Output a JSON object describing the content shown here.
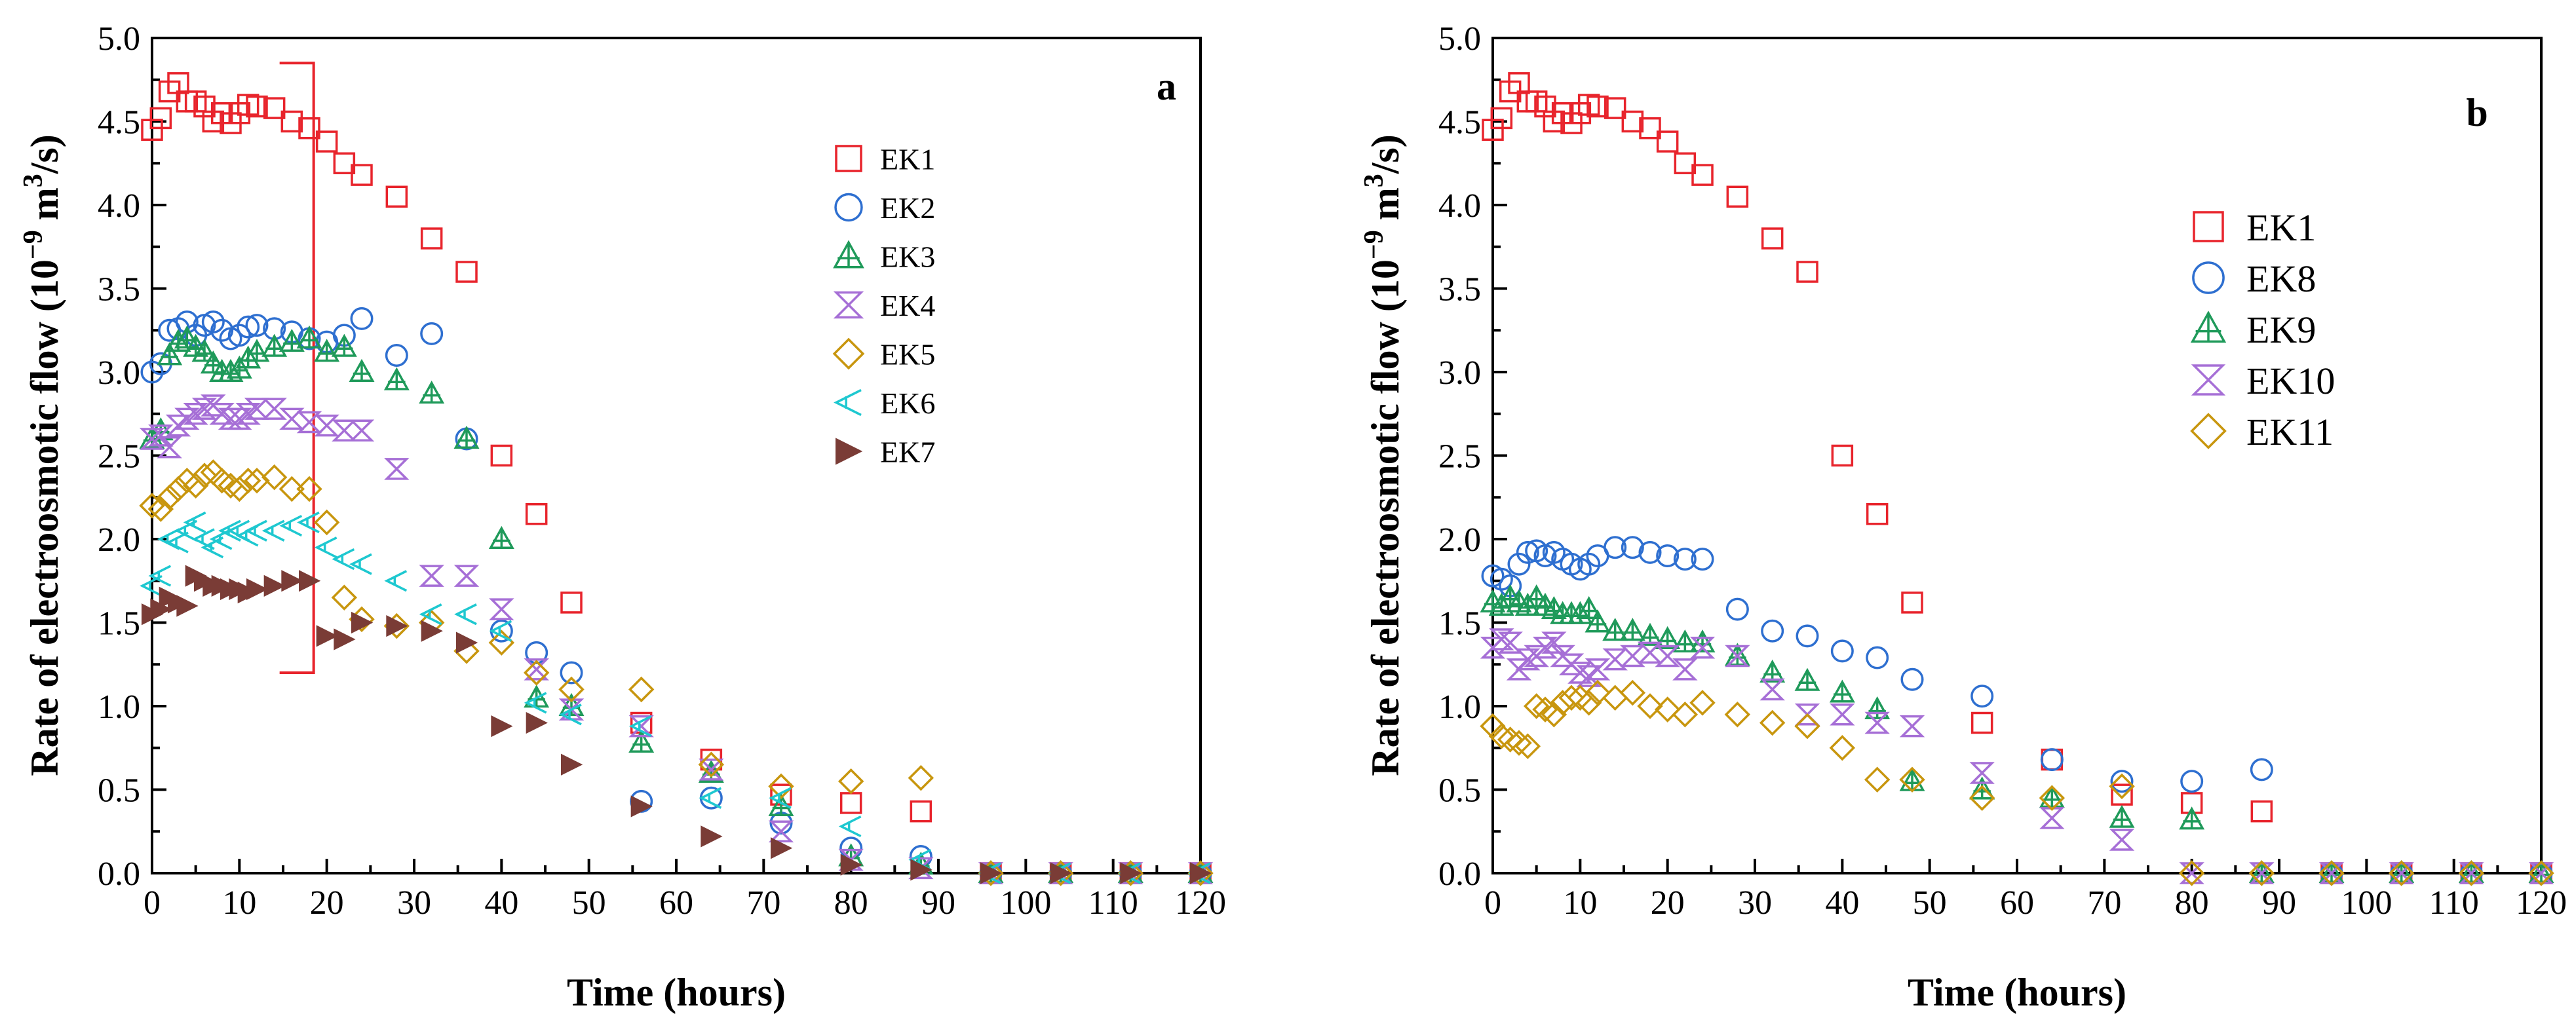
{
  "chart_data": [
    {
      "type": "scatter",
      "panel_label": "a",
      "xlabel": "Time (hours)",
      "ylabel_main": "Rate of electroosmotic flow (10",
      "ylabel_exp": "−9",
      "ylabel_mid": " m",
      "ylabel_exp2": "3",
      "ylabel_end": "/s)",
      "xlim": [
        0,
        120
      ],
      "ylim": [
        0,
        5
      ],
      "xticks": [
        "0",
        "10",
        "20",
        "30",
        "40",
        "50",
        "60",
        "70",
        "80",
        "90",
        "100",
        "110",
        "120"
      ],
      "yticks": [
        "0.0",
        "0.5",
        "1.0",
        "1.5",
        "2.0",
        "2.5",
        "3.0",
        "3.5",
        "4.0",
        "4.5",
        "5.0"
      ],
      "legend_position": "top-right",
      "bracket": {
        "x_start": 0,
        "x_end": 18.5,
        "y_low": 1.2,
        "y_high": 4.85,
        "color": "#e8242c"
      },
      "series": [
        {
          "name": "EK1",
          "marker": "square",
          "color": "#e8242c",
          "x": [
            0,
            1,
            2,
            3,
            4,
            5,
            6,
            7,
            8,
            9,
            10,
            11,
            12,
            14,
            16,
            18,
            20,
            22,
            24,
            28,
            32,
            36,
            40,
            44,
            48,
            56,
            64,
            72,
            80,
            88,
            96,
            104,
            112,
            120
          ],
          "y": [
            4.45,
            4.52,
            4.68,
            4.73,
            4.62,
            4.62,
            4.59,
            4.5,
            4.55,
            4.49,
            4.55,
            4.6,
            4.59,
            4.58,
            4.5,
            4.46,
            4.38,
            4.25,
            4.18,
            4.05,
            3.8,
            3.6,
            2.5,
            2.15,
            1.62,
            0.9,
            0.68,
            0.47,
            0.42,
            0.37,
            0.0,
            0.0,
            0.0,
            0.0
          ]
        },
        {
          "name": "EK2",
          "marker": "circle",
          "color": "#2e6fd0",
          "x": [
            0,
            1,
            2,
            3,
            4,
            5,
            6,
            7,
            8,
            9,
            10,
            11,
            12,
            14,
            16,
            18,
            20,
            22,
            24,
            28,
            32,
            36,
            40,
            44,
            48,
            56,
            64,
            72,
            80,
            88,
            96,
            104,
            112,
            120
          ],
          "y": [
            3.0,
            3.05,
            3.25,
            3.26,
            3.3,
            3.22,
            3.28,
            3.3,
            3.25,
            3.2,
            3.22,
            3.27,
            3.28,
            3.26,
            3.24,
            3.2,
            3.18,
            3.22,
            3.32,
            3.1,
            3.23,
            2.6,
            1.45,
            1.32,
            1.2,
            0.43,
            0.45,
            0.3,
            0.15,
            0.1,
            0.0,
            0.0,
            0.0,
            0.0
          ]
        },
        {
          "name": "EK3",
          "marker": "triangle",
          "color": "#1f9a5a",
          "x": [
            0,
            1,
            2,
            3,
            4,
            5,
            6,
            7,
            8,
            9,
            10,
            11,
            12,
            14,
            16,
            18,
            20,
            22,
            24,
            28,
            32,
            36,
            40,
            44,
            48,
            56,
            64,
            72,
            80,
            88,
            96,
            104,
            112,
            120
          ],
          "y": [
            2.6,
            2.65,
            3.1,
            3.18,
            3.2,
            3.15,
            3.12,
            3.05,
            3.0,
            3.0,
            3.02,
            3.08,
            3.12,
            3.15,
            3.18,
            3.2,
            3.12,
            3.15,
            3.0,
            2.95,
            2.87,
            2.6,
            2.0,
            1.05,
            1.0,
            0.78,
            0.6,
            0.4,
            0.1,
            0.05,
            0.0,
            0.0,
            0.0,
            0.0
          ]
        },
        {
          "name": "EK4",
          "marker": "bowtie",
          "color": "#a66fd6",
          "x": [
            0,
            1,
            2,
            3,
            4,
            5,
            6,
            7,
            8,
            9,
            10,
            11,
            12,
            14,
            16,
            18,
            20,
            22,
            24,
            28,
            32,
            36,
            40,
            44,
            48,
            56,
            64,
            72,
            80,
            88,
            96,
            104,
            112,
            120
          ],
          "y": [
            2.6,
            2.62,
            2.55,
            2.68,
            2.72,
            2.75,
            2.78,
            2.8,
            2.75,
            2.72,
            2.72,
            2.75,
            2.78,
            2.78,
            2.72,
            2.7,
            2.68,
            2.65,
            2.65,
            2.42,
            1.78,
            1.78,
            1.58,
            1.22,
            0.98,
            0.88,
            0.62,
            0.25,
            0.08,
            0.03,
            0.0,
            0.0,
            0.0,
            0.0
          ]
        },
        {
          "name": "EK5",
          "marker": "diamond",
          "color": "#c8960e",
          "x": [
            0,
            1,
            2,
            3,
            4,
            5,
            6,
            7,
            8,
            9,
            10,
            11,
            12,
            14,
            16,
            18,
            20,
            22,
            24,
            28,
            32,
            36,
            40,
            44,
            48,
            56,
            64,
            72,
            80,
            88,
            96,
            104,
            112,
            120
          ],
          "y": [
            2.2,
            2.18,
            2.25,
            2.3,
            2.35,
            2.32,
            2.38,
            2.4,
            2.35,
            2.32,
            2.3,
            2.35,
            2.35,
            2.37,
            2.3,
            2.3,
            2.1,
            1.65,
            1.52,
            1.48,
            1.5,
            1.33,
            1.38,
            1.2,
            1.1,
            1.1,
            0.65,
            0.52,
            0.55,
            0.57,
            0.0,
            0.0,
            0.0,
            0.0
          ]
        },
        {
          "name": "EK6",
          "marker": "triangle-left",
          "color": "#1ec8d0",
          "x": [
            0,
            1,
            2,
            3,
            4,
            5,
            6,
            7,
            8,
            9,
            10,
            11,
            12,
            14,
            16,
            18,
            20,
            22,
            24,
            28,
            32,
            36,
            40,
            44,
            48,
            56,
            64,
            72,
            80,
            88,
            96,
            104,
            112,
            120
          ],
          "y": [
            1.72,
            1.78,
            2.0,
            1.98,
            2.05,
            2.1,
            2.0,
            1.95,
            2.0,
            2.05,
            2.05,
            2.02,
            2.05,
            2.05,
            2.08,
            2.1,
            1.95,
            1.88,
            1.85,
            1.75,
            1.55,
            1.55,
            1.45,
            1.02,
            0.95,
            0.88,
            0.45,
            0.45,
            0.28,
            0.08,
            0.0,
            0.0,
            0.0,
            0.0
          ]
        },
        {
          "name": "EK7",
          "marker": "triangle-right",
          "color": "#7a3c36",
          "x": [
            0,
            1,
            2,
            3,
            4,
            5,
            6,
            7,
            8,
            9,
            10,
            11,
            12,
            14,
            16,
            18,
            20,
            22,
            24,
            28,
            32,
            36,
            40,
            44,
            48,
            56,
            64,
            72,
            80,
            88,
            96,
            104,
            112,
            120
          ],
          "y": [
            1.55,
            1.58,
            1.65,
            1.62,
            1.6,
            1.78,
            1.75,
            1.72,
            1.72,
            1.7,
            1.7,
            1.68,
            1.7,
            1.72,
            1.75,
            1.75,
            1.42,
            1.4,
            1.5,
            1.48,
            1.45,
            1.38,
            0.88,
            0.9,
            0.65,
            0.4,
            0.22,
            0.15,
            0.05,
            0.02,
            0.0,
            0.0,
            0.0,
            0.0
          ]
        }
      ]
    },
    {
      "type": "scatter",
      "panel_label": "b",
      "xlabel": "Time (hours)",
      "ylabel_main": "Rate of electroosmotic flow (10",
      "ylabel_exp": "−9",
      "ylabel_mid": " m",
      "ylabel_exp2": "3",
      "ylabel_end": "/s)",
      "xlim": [
        0,
        120
      ],
      "ylim": [
        0,
        5
      ],
      "xticks": [
        "0",
        "10",
        "20",
        "30",
        "40",
        "50",
        "60",
        "70",
        "80",
        "90",
        "100",
        "110",
        "120"
      ],
      "yticks": [
        "0.0",
        "0.5",
        "1.0",
        "1.5",
        "2.0",
        "2.5",
        "3.0",
        "3.5",
        "4.0",
        "4.5",
        "5.0"
      ],
      "legend_position": "top-right",
      "series": [
        {
          "name": "EK1",
          "marker": "square",
          "color": "#e8242c",
          "x": [
            0,
            1,
            2,
            3,
            4,
            5,
            6,
            7,
            8,
            9,
            10,
            11,
            12,
            14,
            16,
            18,
            20,
            22,
            24,
            28,
            32,
            36,
            40,
            44,
            48,
            56,
            64,
            72,
            80,
            88,
            96,
            104,
            112,
            120
          ],
          "y": [
            4.45,
            4.52,
            4.68,
            4.73,
            4.62,
            4.62,
            4.59,
            4.5,
            4.55,
            4.49,
            4.55,
            4.6,
            4.59,
            4.58,
            4.5,
            4.46,
            4.38,
            4.25,
            4.18,
            4.05,
            3.8,
            3.6,
            2.5,
            2.15,
            1.62,
            0.9,
            0.68,
            0.47,
            0.42,
            0.37,
            0.0,
            0.0,
            0.0,
            0.0
          ]
        },
        {
          "name": "EK8",
          "marker": "circle",
          "color": "#2e6fd0",
          "x": [
            0,
            1,
            2,
            3,
            4,
            5,
            6,
            7,
            8,
            9,
            10,
            11,
            12,
            14,
            16,
            18,
            20,
            22,
            24,
            28,
            32,
            36,
            40,
            44,
            48,
            56,
            64,
            72,
            80,
            88,
            96,
            104,
            112,
            120
          ],
          "y": [
            1.78,
            1.76,
            1.72,
            1.85,
            1.92,
            1.93,
            1.9,
            1.92,
            1.88,
            1.85,
            1.82,
            1.85,
            1.9,
            1.95,
            1.95,
            1.92,
            1.9,
            1.88,
            1.88,
            1.58,
            1.45,
            1.42,
            1.33,
            1.29,
            1.16,
            1.06,
            0.68,
            0.55,
            0.55,
            0.62,
            0.0,
            0.0,
            0.0,
            0.0
          ]
        },
        {
          "name": "EK9",
          "marker": "triangle",
          "color": "#1f9a5a",
          "x": [
            0,
            1,
            2,
            3,
            4,
            5,
            6,
            7,
            8,
            9,
            10,
            11,
            12,
            14,
            16,
            18,
            20,
            22,
            24,
            28,
            32,
            36,
            40,
            44,
            48,
            56,
            64,
            72,
            80,
            88,
            96,
            104,
            112,
            120
          ],
          "y": [
            1.62,
            1.6,
            1.65,
            1.62,
            1.6,
            1.65,
            1.6,
            1.58,
            1.55,
            1.55,
            1.55,
            1.58,
            1.5,
            1.45,
            1.45,
            1.42,
            1.4,
            1.38,
            1.38,
            1.3,
            1.2,
            1.15,
            1.08,
            0.98,
            0.55,
            0.5,
            0.45,
            0.33,
            0.32,
            0.0,
            0.0,
            0.0,
            0.0,
            0.0
          ]
        },
        {
          "name": "EK10",
          "marker": "bowtie",
          "color": "#a66fd6",
          "x": [
            0,
            1,
            2,
            3,
            4,
            5,
            6,
            7,
            8,
            9,
            10,
            11,
            12,
            14,
            16,
            18,
            20,
            22,
            24,
            28,
            32,
            36,
            40,
            44,
            48,
            56,
            64,
            72,
            80,
            88,
            96,
            104,
            112,
            120
          ],
          "y": [
            1.35,
            1.4,
            1.38,
            1.22,
            1.28,
            1.3,
            1.35,
            1.38,
            1.3,
            1.25,
            1.2,
            1.18,
            1.22,
            1.28,
            1.3,
            1.32,
            1.3,
            1.22,
            1.35,
            1.3,
            1.1,
            0.95,
            0.95,
            0.9,
            0.88,
            0.6,
            0.33,
            0.2,
            0.0,
            0.0,
            0.0,
            0.0,
            0.0,
            0.0
          ]
        },
        {
          "name": "EK11",
          "marker": "diamond",
          "color": "#c8960e",
          "x": [
            0,
            1,
            2,
            3,
            4,
            5,
            6,
            7,
            8,
            9,
            10,
            11,
            12,
            14,
            16,
            18,
            20,
            22,
            24,
            28,
            32,
            36,
            40,
            44,
            48,
            56,
            64,
            72,
            80,
            88,
            96,
            104,
            112,
            120
          ],
          "y": [
            0.88,
            0.82,
            0.8,
            0.78,
            0.76,
            1.0,
            0.98,
            0.95,
            1.02,
            1.05,
            1.05,
            1.02,
            1.08,
            1.05,
            1.08,
            1.0,
            0.98,
            0.95,
            1.02,
            0.95,
            0.9,
            0.88,
            0.75,
            0.56,
            0.56,
            0.45,
            0.45,
            0.52,
            0.0,
            0.0,
            0.0,
            0.0,
            0.0,
            0.0
          ]
        }
      ]
    }
  ]
}
